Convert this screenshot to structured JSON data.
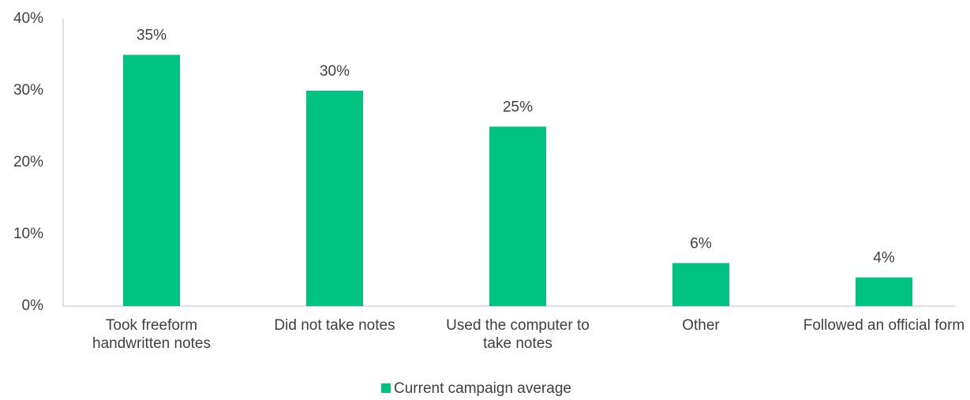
{
  "chart_data": {
    "type": "bar",
    "categories": [
      "Took freeform handwritten notes",
      "Did not take notes",
      "Used the computer to take notes",
      "Other",
      "Followed an official form"
    ],
    "series": [
      {
        "name": "Current campaign average",
        "color": "#00c281",
        "values": [
          35,
          30,
          25,
          6,
          4
        ],
        "value_labels": [
          "35%",
          "30%",
          "25%",
          "6%",
          "4%"
        ]
      }
    ],
    "ylim": [
      0,
      40
    ],
    "yticks": [
      {
        "value": 0,
        "label": "0%"
      },
      {
        "value": 10,
        "label": "10%"
      },
      {
        "value": 20,
        "label": "20%"
      },
      {
        "value": 30,
        "label": "30%"
      },
      {
        "value": 40,
        "label": "40%"
      }
    ],
    "grid": false,
    "legend": "bottom"
  }
}
